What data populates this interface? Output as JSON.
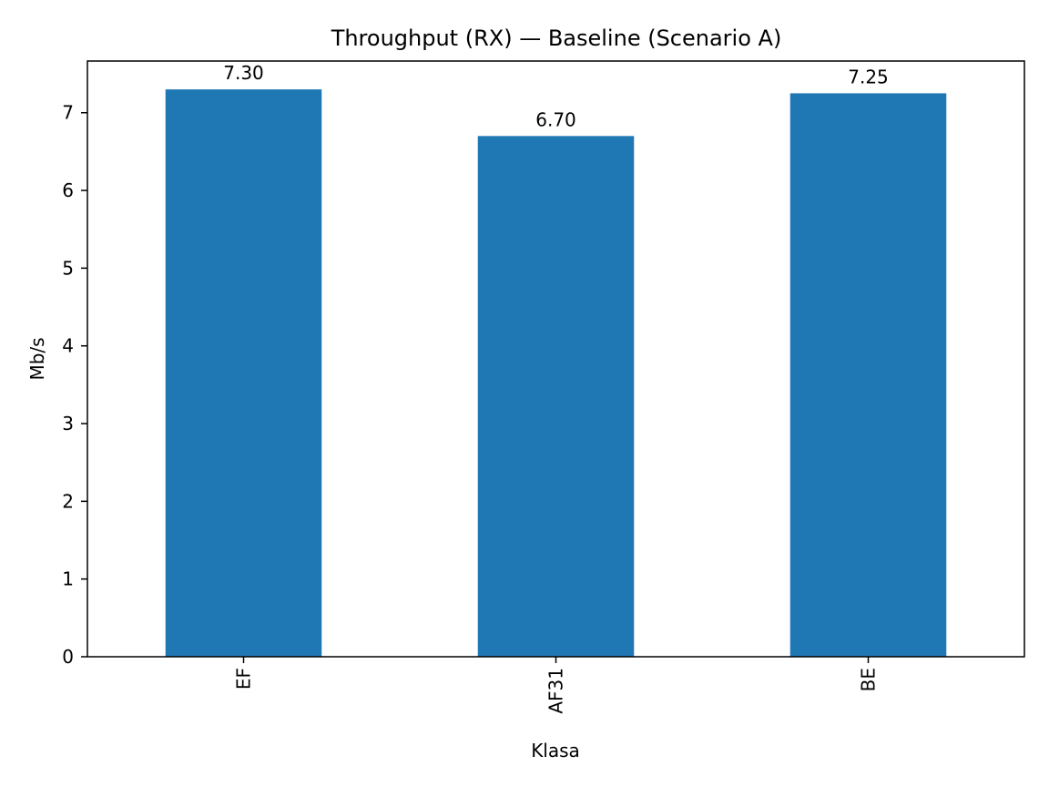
{
  "chart_data": {
    "type": "bar",
    "title": "Throughput (RX) — Baseline (Scenario A)",
    "xlabel": "Klasa",
    "ylabel": "Mb/s",
    "categories": [
      "EF",
      "AF31",
      "BE"
    ],
    "values": [
      7.3,
      6.7,
      7.25
    ],
    "value_labels": [
      "7.30",
      "6.70",
      "7.25"
    ],
    "ylim": [
      0,
      7.665
    ],
    "yticks": [
      0,
      1,
      2,
      3,
      4,
      5,
      6,
      7
    ],
    "bar_color": "#1f77b4",
    "grid": false,
    "legend": "none"
  }
}
